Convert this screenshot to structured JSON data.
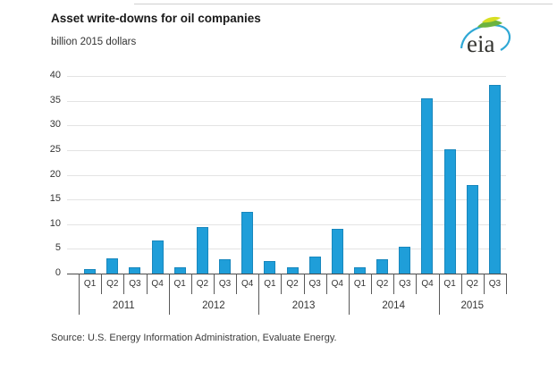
{
  "header": {
    "title": "Asset write-downs for oil companies",
    "subtitle": "billion 2015 dollars"
  },
  "logo": {
    "name": "eia-logo",
    "text": "eia"
  },
  "source": {
    "text": "Source:  U.S. Energy Information Administration, Evaluate Energy."
  },
  "chart_data": {
    "type": "bar",
    "title": "Asset write-downs for oil companies",
    "ylabel": "billion 2015 dollars",
    "ylim": [
      0,
      40
    ],
    "ytick_step": 5,
    "grid": true,
    "bar_color": "#1F9ED9",
    "gridline_color": "#e3e3e3",
    "groups": [
      {
        "year": "2011",
        "quarters": [
          "Q1",
          "Q2",
          "Q3",
          "Q4"
        ],
        "values": [
          0.9,
          3.1,
          1.2,
          6.7
        ]
      },
      {
        "year": "2012",
        "quarters": [
          "Q1",
          "Q2",
          "Q3",
          "Q4"
        ],
        "values": [
          1.3,
          9.5,
          2.9,
          12.5
        ]
      },
      {
        "year": "2013",
        "quarters": [
          "Q1",
          "Q2",
          "Q3",
          "Q4"
        ],
        "values": [
          2.6,
          1.3,
          3.4,
          9.1
        ]
      },
      {
        "year": "2014",
        "quarters": [
          "Q1",
          "Q2",
          "Q3",
          "Q4"
        ],
        "values": [
          1.2,
          2.9,
          5.5,
          35.5
        ]
      },
      {
        "year": "2015",
        "quarters": [
          "Q1",
          "Q2",
          "Q3"
        ],
        "values": [
          25.1,
          18.0,
          38.1
        ]
      }
    ]
  }
}
